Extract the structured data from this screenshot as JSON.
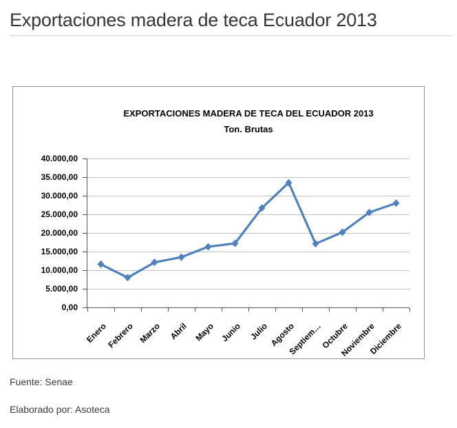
{
  "page": {
    "title": "Exportaciones madera de teca Ecuador 2013"
  },
  "chart": {
    "title": "EXPORTACIONES MADERA DE TECA DEL ECUADOR 2013",
    "subtitle": "Ton. Brutas"
  },
  "chart_data": {
    "type": "line",
    "title": "EXPORTACIONES MADERA DE TECA DEL ECUADOR 2013",
    "subtitle": "Ton. Brutas",
    "categories": [
      "Enero",
      "Febrero",
      "Marzo",
      "Abril",
      "Mayo",
      "Junio",
      "Julio",
      "Agosto",
      "Septiem…",
      "Octubre",
      "Noviembre",
      "Diciembre"
    ],
    "categories_full": [
      "Enero",
      "Febrero",
      "Marzo",
      "Abril",
      "Mayo",
      "Junio",
      "Julio",
      "Agosto",
      "Septiembre",
      "Octubre",
      "Noviembre",
      "Diciembre"
    ],
    "series": [
      {
        "name": "Ton. Brutas",
        "values": [
          11600,
          8000,
          12100,
          13500,
          16300,
          17200,
          26700,
          33500,
          17100,
          20200,
          25500,
          28000
        ]
      }
    ],
    "ylim": [
      0,
      40000
    ],
    "ytick_step": 5000,
    "ytick_labels": [
      "0,00",
      "5.000,00",
      "10.000,00",
      "15.000,00",
      "20.000,00",
      "25.000,00",
      "30.000,00",
      "35.000,00",
      "40.000,00"
    ],
    "xlabel": "",
    "ylabel": "",
    "grid": "horizontal",
    "legend": "none",
    "line_color": "#4f81bd",
    "marker": "diamond",
    "axis_color": "#525252",
    "grid_color": "#bfbfbf"
  },
  "footer": {
    "source": "Fuente: Senae",
    "elaborated_by": "Elaborado por: Asoteca"
  }
}
